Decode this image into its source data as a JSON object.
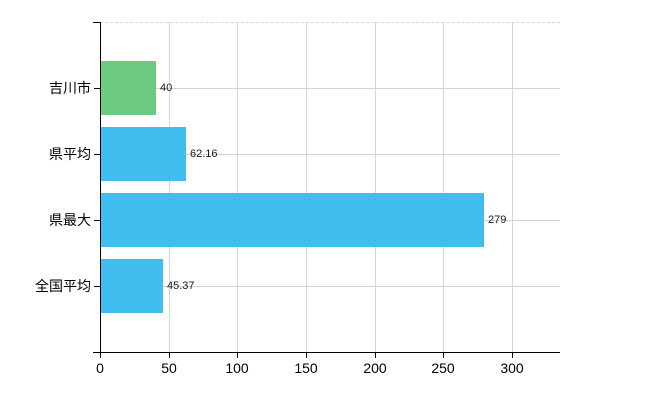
{
  "chart_data": {
    "type": "bar",
    "orientation": "horizontal",
    "title": "",
    "xlabel": "",
    "ylabel": "",
    "categories": [
      "吉川市",
      "県平均",
      "県最大",
      "全国平均"
    ],
    "values": [
      40,
      62.16,
      279,
      45.37
    ],
    "value_labels": [
      "40",
      "62.16",
      "279",
      "45.37"
    ],
    "bar_colors": [
      "#6ccb80",
      "#41bef0",
      "#41bef0",
      "#41bef0"
    ],
    "x_ticks": [
      0,
      50,
      100,
      150,
      200,
      250,
      300
    ],
    "x_tick_labels": [
      "0",
      "50",
      "100",
      "150",
      "200",
      "250",
      "300"
    ],
    "xlim": [
      0,
      335
    ],
    "grid": true,
    "legend": "none"
  },
  "colors": {
    "highlight_bar": "#6ccb80",
    "default_bar": "#41bef0",
    "axis": "#000000",
    "gridline": "#d6d6d6",
    "text": "#000000",
    "background": "#ffffff"
  }
}
